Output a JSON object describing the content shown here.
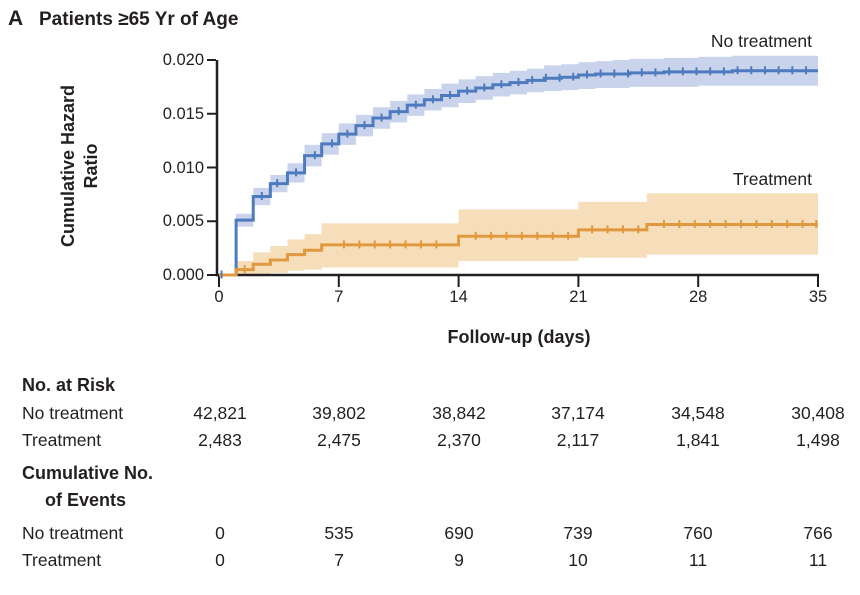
{
  "panel": {
    "letter": "A",
    "title": "Patients ≥65 Yr of Age"
  },
  "chart_data": {
    "type": "line",
    "subtype": "cumulative-hazard-step-curves-with-confidence-bands",
    "title": "Patients ≥65 Yr of Age",
    "xlabel": "Follow-up (days)",
    "ylabel_lines": [
      "Cumulative Hazard",
      "Ratio"
    ],
    "xlim": [
      0,
      35
    ],
    "ylim": [
      0,
      0.02
    ],
    "xticks": [
      0,
      7,
      14,
      21,
      28,
      35
    ],
    "ytick_labels": [
      "0.000",
      "0.005",
      "0.010",
      "0.015",
      "0.020"
    ],
    "grid": false,
    "axis_color": "#231f20",
    "point_format": "[day, value, ci_lower, ci_upper]",
    "series": [
      {
        "name": "No treatment",
        "line_color": "#4e7bbe",
        "band_color": "#c9d4ec",
        "points": [
          [
            0,
            0,
            0,
            0
          ],
          [
            1,
            0.0051,
            0.0045,
            0.0057
          ],
          [
            2,
            0.0073,
            0.0065,
            0.0081
          ],
          [
            3,
            0.0085,
            0.0077,
            0.0093
          ],
          [
            4,
            0.0095,
            0.0086,
            0.0104
          ],
          [
            5,
            0.0111,
            0.0101,
            0.0121
          ],
          [
            6,
            0.0122,
            0.0112,
            0.0132
          ],
          [
            7,
            0.0131,
            0.0121,
            0.0141
          ],
          [
            8,
            0.0139,
            0.0129,
            0.0149
          ],
          [
            9,
            0.0146,
            0.0136,
            0.0156
          ],
          [
            10,
            0.0152,
            0.0142,
            0.0162
          ],
          [
            11,
            0.0158,
            0.0148,
            0.0168
          ],
          [
            12,
            0.0163,
            0.0153,
            0.0173
          ],
          [
            13,
            0.0167,
            0.0156,
            0.0178
          ],
          [
            14,
            0.0171,
            0.016,
            0.0182
          ],
          [
            15,
            0.0174,
            0.0163,
            0.0185
          ],
          [
            16,
            0.0177,
            0.0166,
            0.0188
          ],
          [
            17,
            0.0179,
            0.0168,
            0.019
          ],
          [
            18,
            0.0181,
            0.017,
            0.0192
          ],
          [
            19,
            0.0183,
            0.0171,
            0.0195
          ],
          [
            20,
            0.0184,
            0.0172,
            0.0196
          ],
          [
            21,
            0.0186,
            0.0173,
            0.0198
          ],
          [
            22,
            0.0187,
            0.0174,
            0.0199
          ],
          [
            23,
            0.0187,
            0.0174,
            0.02
          ],
          [
            24,
            0.0188,
            0.0175,
            0.0201
          ],
          [
            26,
            0.0189,
            0.0175,
            0.0202
          ],
          [
            28,
            0.0189,
            0.0176,
            0.0203
          ],
          [
            30,
            0.019,
            0.0176,
            0.0204
          ],
          [
            35,
            0.019,
            0.0176,
            0.0204
          ]
        ],
        "censor_days": [
          0.15,
          2.5,
          3.4,
          4.5,
          5.6,
          6.6,
          7.5,
          8.5,
          9.5,
          10.5,
          11.5,
          12.5,
          13.5,
          14.5,
          15.5,
          16.5,
          17.5,
          18.3,
          19.1,
          19.9,
          20.7,
          21.5,
          22.3,
          23.1,
          23.9,
          24.7,
          25.5,
          26.3,
          27.1,
          27.9,
          28.7,
          29.5,
          30.3,
          31.1,
          31.9,
          32.7,
          33.5,
          34.3
        ]
      },
      {
        "name": "Treatment",
        "line_color": "#e0993e",
        "band_color": "#f7deba",
        "points": [
          [
            0,
            0,
            0,
            0
          ],
          [
            1,
            0.0005,
            0.0,
            0.0013
          ],
          [
            2,
            0.001,
            0.0001,
            0.0021
          ],
          [
            3,
            0.0014,
            0.0002,
            0.0027
          ],
          [
            4,
            0.0019,
            0.0004,
            0.0033
          ],
          [
            5,
            0.0023,
            0.0005,
            0.0038
          ],
          [
            6,
            0.0028,
            0.0007,
            0.0048
          ],
          [
            14,
            0.0036,
            0.0013,
            0.0061
          ],
          [
            21,
            0.0042,
            0.0016,
            0.0068
          ],
          [
            25,
            0.0047,
            0.0019,
            0.0076
          ],
          [
            35,
            0.0047,
            0.0019,
            0.0076
          ]
        ],
        "censor_days": [
          1.5,
          7.3,
          8.2,
          9.1,
          10.0,
          10.9,
          11.8,
          12.7,
          15.0,
          15.9,
          16.8,
          17.7,
          18.6,
          19.5,
          20.4,
          21.8,
          22.7,
          23.6,
          24.5,
          26.0,
          26.9,
          27.8,
          28.7,
          29.6,
          30.5,
          31.4,
          32.3,
          33.2,
          34.1,
          34.9
        ]
      }
    ]
  },
  "tables": {
    "at_risk": {
      "heading": "No. at Risk",
      "rows": [
        {
          "label": "No treatment",
          "values": [
            "42,821",
            "39,802",
            "38,842",
            "37,174",
            "34,548",
            "30,408"
          ]
        },
        {
          "label": "Treatment",
          "values": [
            "2,483",
            "2,475",
            "2,370",
            "2,117",
            "1,841",
            "1,498"
          ]
        }
      ]
    },
    "events": {
      "heading_line1": "Cumulative No.",
      "heading_line2": "of Events",
      "rows": [
        {
          "label": "No treatment",
          "values": [
            "0",
            "535",
            "690",
            "739",
            "760",
            "766"
          ]
        },
        {
          "label": "Treatment",
          "values": [
            "0",
            "7",
            "9",
            "10",
            "11",
            "11"
          ]
        }
      ]
    }
  }
}
